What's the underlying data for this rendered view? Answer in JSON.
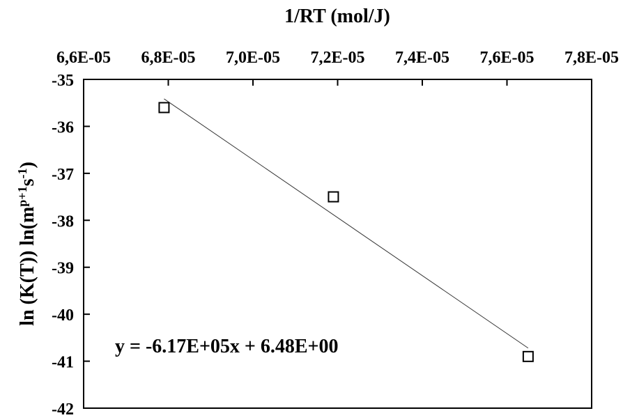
{
  "chart_data": {
    "type": "scatter",
    "x_axis_title": "1/RT (mol/J)",
    "y_axis_title": {
      "prefix": "ln (K(T)) ln(m",
      "sup1": "p+1",
      "mid": "s",
      "sup2": "-1",
      "suffix": ")"
    },
    "xlim": [
      6.6e-05,
      7.8e-05
    ],
    "ylim": [
      -42,
      -35
    ],
    "x_ticks": [
      6.6e-05,
      6.8e-05,
      7e-05,
      7.2e-05,
      7.4e-05,
      7.6e-05,
      7.8e-05
    ],
    "x_tick_labels": [
      "6,6E-05",
      "6,8E-05",
      "7,0E-05",
      "7,2E-05",
      "7,4E-05",
      "7,6E-05",
      "7,8E-05"
    ],
    "y_ticks": [
      -35,
      -36,
      -37,
      -38,
      -39,
      -40,
      -41,
      -42
    ],
    "y_tick_labels": [
      "-35",
      "-36",
      "-37",
      "-38",
      "-39",
      "-40",
      "-41",
      "-42"
    ],
    "x_axis_position": "top",
    "grid": false,
    "points": [
      {
        "x": 6.79e-05,
        "y": -35.6
      },
      {
        "x": 7.19e-05,
        "y": -37.5
      },
      {
        "x": 7.65e-05,
        "y": -40.9
      }
    ],
    "trendline": {
      "slope": -617000,
      "intercept": 6.48,
      "x_range": [
        6.79e-05,
        7.65e-05
      ],
      "equation_label": "y = -6.17E+05x + 6.48E+00"
    },
    "marker": "open-square",
    "colors": {
      "marker": "#000000",
      "line": "#333333",
      "axes": "#000000"
    }
  }
}
